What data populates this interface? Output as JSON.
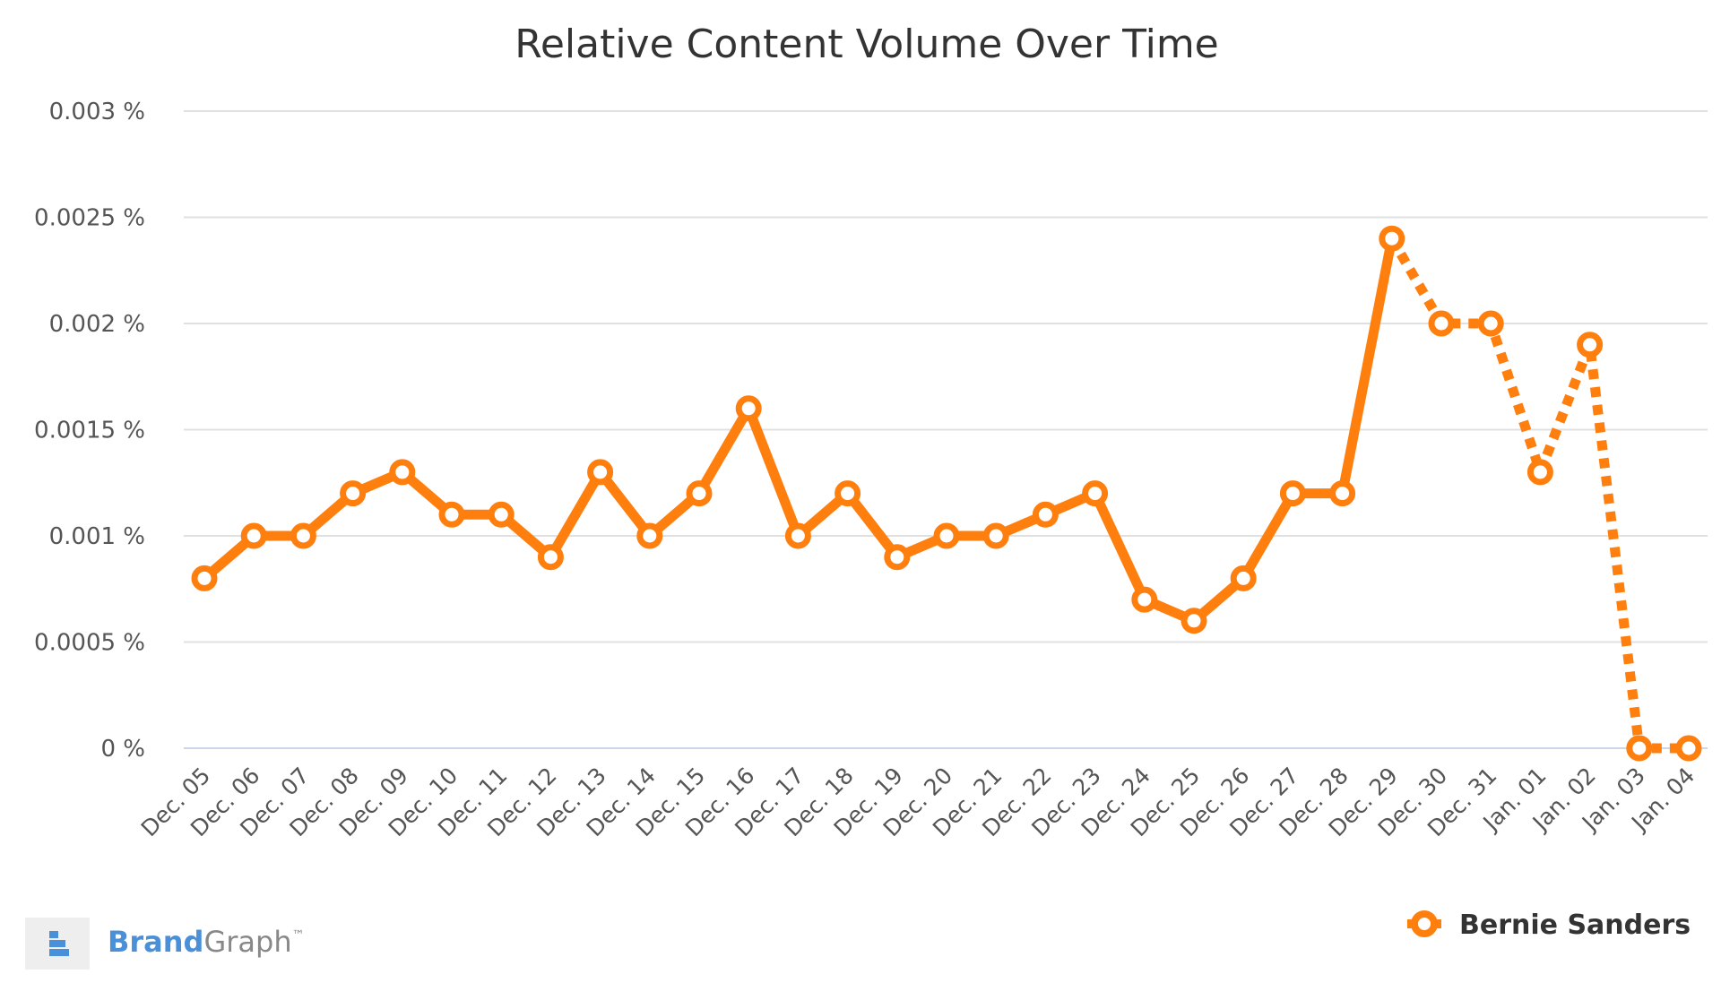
{
  "chart_data": {
    "type": "line",
    "title": "Relative Content Volume Over Time",
    "xlabel": "",
    "ylabel": "",
    "ylim": [
      0,
      0.003
    ],
    "y_ticks": [
      "0 %",
      "0.0005 %",
      "0.001 %",
      "0.0015 %",
      "0.002 %",
      "0.0025 %",
      "0.003 %"
    ],
    "y_tick_values": [
      0,
      0.0005,
      0.001,
      0.0015,
      0.002,
      0.0025,
      0.003
    ],
    "categories": [
      "Dec. 05",
      "Dec. 06",
      "Dec. 07",
      "Dec. 08",
      "Dec. 09",
      "Dec. 10",
      "Dec. 11",
      "Dec. 12",
      "Dec. 13",
      "Dec. 14",
      "Dec. 15",
      "Dec. 16",
      "Dec. 17",
      "Dec. 18",
      "Dec. 19",
      "Dec. 20",
      "Dec. 21",
      "Dec. 22",
      "Dec. 23",
      "Dec. 24",
      "Dec. 25",
      "Dec. 26",
      "Dec. 27",
      "Dec. 28",
      "Dec. 29",
      "Dec. 30",
      "Dec. 31",
      "Jan. 01",
      "Jan. 02",
      "Jan. 03",
      "Jan. 04"
    ],
    "series": [
      {
        "name": "Bernie Sanders",
        "color": "#ff7f0e",
        "values": [
          0.0008,
          0.001,
          0.001,
          0.0012,
          0.0013,
          0.0011,
          0.0011,
          0.0009,
          0.0013,
          0.001,
          0.0012,
          0.0016,
          0.001,
          0.0012,
          0.0009,
          0.001,
          0.001,
          0.0011,
          0.0012,
          0.0007,
          0.0006,
          0.0008,
          0.0012,
          0.0012,
          0.0024,
          0.002,
          0.002,
          0.0013,
          0.0019,
          0,
          0
        ],
        "dashed_from_category": "Dec. 29"
      }
    ],
    "grid": true,
    "legend": "bottom-right"
  },
  "branding": {
    "brand_part": "Brand",
    "graph_part": "Graph",
    "tm": "™",
    "brand_color": "#4a90d9",
    "graph_color": "#888888"
  },
  "colors": {
    "grid": "#e0e0e0",
    "baseline": "#ccd6eb"
  }
}
